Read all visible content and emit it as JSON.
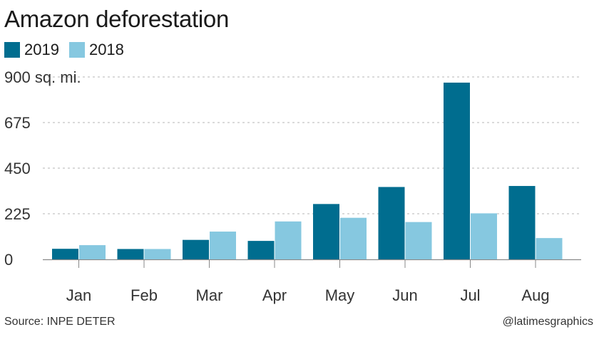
{
  "title": "Amazon deforestation",
  "source": "Source: INPE DETER",
  "credit": "@latimesgraphics",
  "colors": {
    "2019": "#006d8f",
    "2018": "#86c8e0"
  },
  "chart_data": {
    "type": "bar",
    "title": "Amazon deforestation",
    "unit_label": "900 sq. mi.",
    "categories": [
      "Jan",
      "Feb",
      "Mar",
      "Apr",
      "May",
      "Jun",
      "Jul",
      "Aug"
    ],
    "series": [
      {
        "name": "2019",
        "color": "#006d8f",
        "values": [
          52,
          51,
          96,
          91,
          273,
          357,
          872,
          362
        ]
      },
      {
        "name": "2018",
        "color": "#86c8e0",
        "values": [
          70,
          51,
          137,
          187,
          205,
          184,
          227,
          105
        ]
      }
    ],
    "yticks": [
      0,
      225,
      450,
      675,
      900
    ],
    "ytick_labels": [
      "0",
      "225",
      "450",
      "675",
      "900 sq. mi."
    ],
    "ylim": [
      0,
      900
    ],
    "grid": true,
    "legend": "top-left"
  }
}
